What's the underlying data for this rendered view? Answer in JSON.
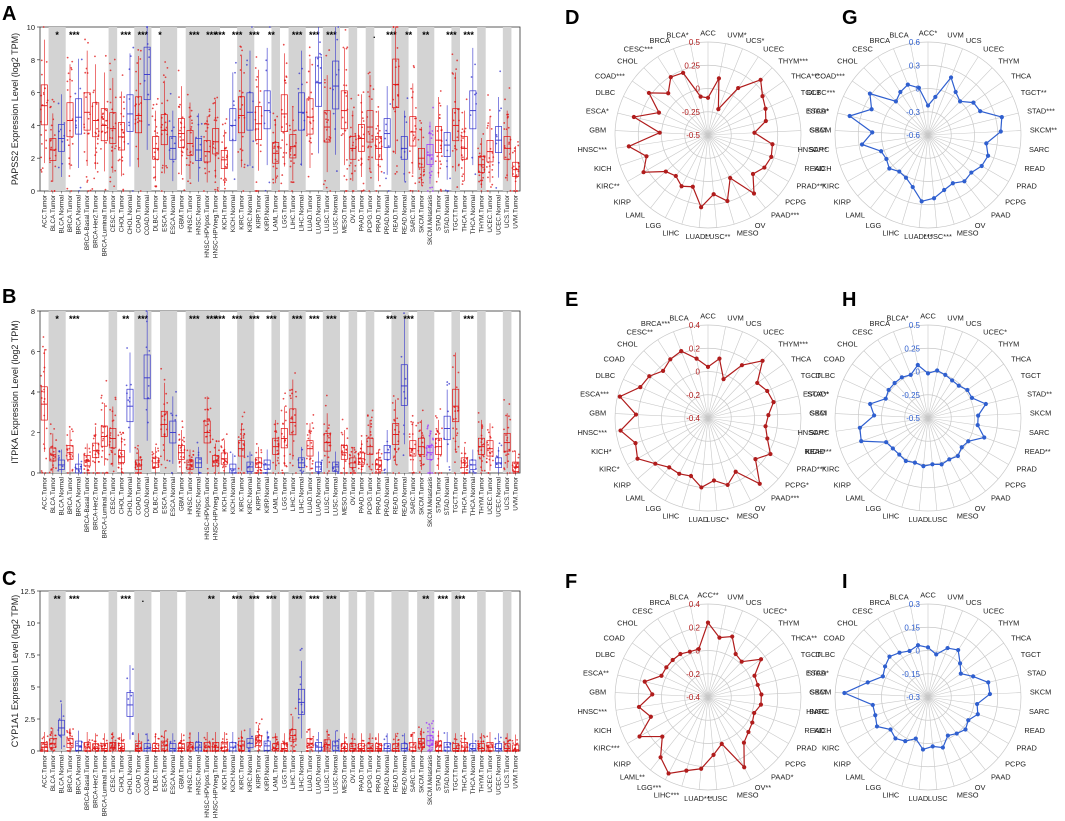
{
  "chart_data": [
    {
      "panel": "A",
      "type": "box",
      "ylabel": "PAPSS2 Expression Level (log2 TPM)",
      "ylim": [
        0,
        10
      ],
      "yticks": [
        0,
        2,
        4,
        6,
        8,
        10
      ],
      "categories": [
        "ACC.Tumor",
        "BLCA.Tumor",
        "BLCA.Normal",
        "BRCA.Tumor",
        "BRCA.Normal",
        "BRCA-Basal.Tumor",
        "BRCA-Her2.Tumor",
        "BRCA-Luminal.Tumor",
        "CESC.Tumor",
        "CHOL.Tumor",
        "CHOL.Normal",
        "COAD.Tumor",
        "COAD.Normal",
        "DLBC.Tumor",
        "ESCA.Tumor",
        "ESCA.Normal",
        "GBM.Tumor",
        "HNSC.Tumor",
        "HNSC.Normal",
        "HNSC-HPVpos.Tumor",
        "HNSC-HPVneg.Tumor",
        "KICH.Tumor",
        "KICH.Normal",
        "KIRC.Tumor",
        "KIRC.Normal",
        "KIRP.Tumor",
        "KIRP.Normal",
        "LAML.Tumor",
        "LGG.Tumor",
        "LIHC.Tumor",
        "LIHC.Normal",
        "LUAD.Tumor",
        "LUAD.Normal",
        "LUSC.Tumor",
        "LUSC.Normal",
        "MESO.Tumor",
        "OV.Tumor",
        "PAAD.Tumor",
        "PCPG.Tumor",
        "PRAD.Tumor",
        "PRAD.Normal",
        "READ.Tumor",
        "READ.Normal",
        "SARC.Tumor",
        "SKCM.Tumor",
        "SKCM.Metastasis",
        "STAD.Tumor",
        "STAD.Normal",
        "TGCT.Tumor",
        "THCA.Tumor",
        "THCA.Normal",
        "THYM.Tumor",
        "UCEC.Tumor",
        "UCEC.Normal",
        "UCS.Tumor",
        "UVM.Tumor"
      ],
      "medians": [
        5.2,
        2.5,
        3.2,
        4.3,
        4.5,
        4.8,
        4.3,
        4.0,
        3.8,
        3.3,
        4.7,
        4.6,
        7.1,
        2.6,
        3.7,
        2.6,
        3.5,
        2.9,
        2.5,
        2.4,
        3.0,
        1.9,
        4.0,
        4.6,
        4.8,
        4.1,
        4.9,
        2.3,
        4.7,
        2.7,
        4.8,
        4.5,
        6.6,
        3.9,
        6.4,
        4.9,
        2.6,
        3.2,
        3.9,
        2.6,
        3.5,
        6.5,
        2.6,
        3.6,
        2.0,
        2.2,
        3.1,
        2.8,
        4.0,
        2.6,
        4.9,
        1.6,
        2.4,
        3.1,
        2.6,
        1.3
      ],
      "significance": [
        "",
        "*",
        "",
        "***",
        "",
        "",
        "",
        "",
        "",
        "***",
        "",
        "***",
        "",
        "*",
        "",
        "",
        "",
        "***",
        "",
        "***",
        "***",
        "",
        "***",
        "",
        "***",
        "",
        "**",
        "",
        "",
        "***",
        "",
        "***",
        "",
        "***",
        "",
        "",
        "",
        "",
        ".",
        "",
        "***",
        "",
        "**",
        "",
        "**",
        "",
        "",
        "***",
        "",
        "***",
        "",
        "",
        "",
        "",
        "",
        ""
      ]
    },
    {
      "panel": "B",
      "type": "box",
      "ylabel": "ITPKA Expression Level (log2 TPM)",
      "ylim": [
        0,
        8
      ],
      "yticks": [
        0,
        2,
        4,
        6,
        8
      ],
      "categories": [
        "ACC.Tumor",
        "BLCA.Tumor",
        "BLCA.Normal",
        "BRCA.Tumor",
        "BRCA.Normal",
        "BRCA-Basal.Tumor",
        "BRCA-Her2.Tumor",
        "BRCA-Luminal.Tumor",
        "CESC.Tumor",
        "CHOL.Tumor",
        "CHOL.Normal",
        "COAD.Tumor",
        "COAD.Normal",
        "DLBC.Tumor",
        "ESCA.Tumor",
        "ESCA.Normal",
        "GBM.Tumor",
        "HNSC.Tumor",
        "HNSC.Normal",
        "HNSC-HPVpos.Tumor",
        "HNSC-HPVneg.Tumor",
        "KICH.Tumor",
        "KICH.Normal",
        "KIRC.Tumor",
        "KIRC.Normal",
        "KIRP.Tumor",
        "KIRP.Normal",
        "LAML.Tumor",
        "LGG.Tumor",
        "LIHC.Tumor",
        "LIHC.Normal",
        "LUAD.Tumor",
        "LUAD.Normal",
        "LUSC.Tumor",
        "LUSC.Normal",
        "MESO.Tumor",
        "OV.Tumor",
        "PAAD.Tumor",
        "PCPG.Tumor",
        "PRAD.Tumor",
        "PRAD.Normal",
        "READ.Tumor",
        "READ.Normal",
        "SARC.Tumor",
        "SKCM.Tumor",
        "SKCM.Metastasis",
        "STAD.Tumor",
        "STAD.Normal",
        "TGCT.Tumor",
        "THCA.Tumor",
        "THCA.Normal",
        "THYM.Tumor",
        "UCEC.Tumor",
        "UCEC.Normal",
        "UCS.Tumor",
        "UVM.Tumor"
      ],
      "medians": [
        3.4,
        0.9,
        0.4,
        1.0,
        0.2,
        0.6,
        1.1,
        1.8,
        1.7,
        0.8,
        3.3,
        0.4,
        4.7,
        0.5,
        2.4,
        2.0,
        1.0,
        0.4,
        0.5,
        2.0,
        0.6,
        0.7,
        0.2,
        1.2,
        0.3,
        0.5,
        0.4,
        1.3,
        1.7,
        2.5,
        0.5,
        1.2,
        0.3,
        1.5,
        0.3,
        1.0,
        0.5,
        0.7,
        1.3,
        0.4,
        1.0,
        1.9,
        4.3,
        1.2,
        1.3,
        1.0,
        1.3,
        2.2,
        3.3,
        0.5,
        0.4,
        1.3,
        1.2,
        0.5,
        1.5,
        0.3
      ],
      "significance": [
        "",
        "*",
        "",
        "***",
        "",
        "",
        "",
        "",
        "",
        "**",
        "",
        "***",
        "",
        "",
        "",
        "",
        "",
        "***",
        "",
        "***",
        "***",
        "",
        "***",
        "",
        "***",
        "",
        "***",
        "",
        "",
        "***",
        "",
        "***",
        "",
        "***",
        "",
        "",
        "",
        "",
        "",
        "",
        "***",
        "",
        "***",
        "",
        "",
        "",
        "",
        "",
        "",
        "***",
        "",
        "",
        "",
        "",
        "",
        ""
      ]
    },
    {
      "panel": "C",
      "type": "box",
      "ylabel": "CYP1A1 Expression Level (log2 TPM)",
      "ylim": [
        0,
        12.5
      ],
      "yticks": [
        0,
        2.5,
        5,
        7.5,
        10,
        12.5
      ],
      "categories": [
        "ACC.Tumor",
        "BLCA.Tumor",
        "BLCA.Normal",
        "BRCA.Tumor",
        "BRCA.Normal",
        "BRCA-Basal.Tumor",
        "BRCA-Her2.Tumor",
        "BRCA-Luminal.Tumor",
        "CESC.Tumor",
        "CHOL.Tumor",
        "CHOL.Normal",
        "COAD.Tumor",
        "COAD.Normal",
        "DLBC.Tumor",
        "ESCA.Tumor",
        "ESCA.Normal",
        "GBM.Tumor",
        "HNSC.Tumor",
        "HNSC.Normal",
        "HNSC-HPVpos.Tumor",
        "HNSC-HPVneg.Tumor",
        "KICH.Tumor",
        "KICH.Normal",
        "KIRC.Tumor",
        "KIRC.Normal",
        "KIRP.Tumor",
        "KIRP.Normal",
        "LAML.Tumor",
        "LGG.Tumor",
        "LIHC.Tumor",
        "LIHC.Normal",
        "LUAD.Tumor",
        "LUAD.Normal",
        "LUSC.Tumor",
        "LUSC.Normal",
        "MESO.Tumor",
        "OV.Tumor",
        "PAAD.Tumor",
        "PCPG.Tumor",
        "PRAD.Tumor",
        "PRAD.Normal",
        "READ.Tumor",
        "READ.Normal",
        "SARC.Tumor",
        "SKCM.Tumor",
        "SKCM.Metastasis",
        "STAD.Tumor",
        "STAD.Normal",
        "TGCT.Tumor",
        "THCA.Tumor",
        "THCA.Normal",
        "THYM.Tumor",
        "UCEC.Tumor",
        "UCEC.Normal",
        "UCS.Tumor",
        "UVM.Tumor"
      ],
      "medians": [
        0.3,
        0.6,
        1.8,
        0.6,
        0.4,
        0.3,
        0.2,
        0.2,
        0.3,
        0.2,
        3.6,
        0.2,
        0.2,
        0.2,
        0.4,
        0.2,
        0.2,
        0.3,
        0.3,
        0.3,
        0.3,
        0.3,
        0.3,
        0.4,
        0.6,
        0.8,
        0.4,
        0.2,
        0.2,
        1.2,
        3.8,
        0.6,
        0.3,
        0.5,
        0.4,
        0.2,
        0.2,
        0.2,
        0.2,
        0.2,
        0.2,
        0.2,
        0.2,
        0.3,
        0.6,
        0.8,
        0.4,
        0.3,
        0.2,
        0.3,
        0.2,
        0.2,
        0.3,
        0.2,
        0.2,
        0.1
      ],
      "significance": [
        "",
        "**",
        "",
        "***",
        "",
        "",
        "",
        "",
        "",
        "***",
        "",
        ".",
        "",
        "",
        "",
        "",
        "",
        "",
        "",
        "**",
        "",
        "",
        "***",
        "",
        "***",
        "",
        "***",
        "",
        "",
        "***",
        "",
        "***",
        "",
        "***",
        "",
        "",
        "",
        "",
        "",
        "",
        "",
        "",
        "",
        "",
        "**",
        "",
        "***",
        "",
        "***",
        "",
        "",
        "",
        "",
        "",
        "",
        ""
      ]
    },
    {
      "panel": "D",
      "type": "radar",
      "color": "#b01c1c",
      "rticks": [
        "0.5",
        "0.25",
        "0",
        "-0.25",
        "-0.5"
      ],
      "rmin": -0.5,
      "rmax": 0.5,
      "labels": [
        "ACC",
        "UVM*",
        "UCS*",
        "UCEC",
        "THYM***",
        "THCA***",
        "TGCT",
        "STAD*",
        "SKCM",
        "SARC",
        "READ",
        "PRAD***",
        "PCPG",
        "PAAD***",
        "OV",
        "MESO",
        "LUSC**",
        "LUAD**",
        "LIHC",
        "LGG",
        "LAML",
        "KIRP",
        "KIRC**",
        "KICH",
        "HNSC***",
        "GBM",
        "ESCA*",
        "DLBC",
        "COAD***",
        "CHOL",
        "CESC***",
        "BRCA",
        "BLCA*"
      ],
      "values": [
        -0.1,
        0.12,
        -0.2,
        0.1,
        0.32,
        0.22,
        0.18,
        0.14,
        0.0,
        0.2,
        0.22,
        0.2,
        0.14,
        0.3,
        0.02,
        0.24,
        0.14,
        0.28,
        0.08,
        0.12,
        0.06,
        0.1,
        0.3,
        0.2,
        0.36,
        0.02,
        0.32,
        0.08,
        0.28,
        0.12,
        0.24,
        0.22,
        -0.08
      ]
    },
    {
      "panel": "E",
      "type": "radar",
      "color": "#b01c1c",
      "rticks": [
        "0.4",
        "0.2",
        "0",
        "-0.2",
        "-0.4"
      ],
      "rmin": -0.4,
      "rmax": 0.4,
      "labels": [
        "ACC",
        "UVM",
        "UCS",
        "UCEC",
        "THYM***",
        "THCA",
        "TGCT",
        "STAD*",
        "SKCI",
        "SARC",
        "READ",
        "PRAD***",
        "PCPG*",
        "PAAD***",
        "OV",
        "MESO",
        "LUSC*",
        "LUAD",
        "LIHC",
        "LGG",
        "LAML",
        "KIRP",
        "KIRC*",
        "KICH*",
        "HNSC***",
        "GBM",
        "ESCA***",
        "DLBC",
        "COAD",
        "CHOL",
        "CESC**",
        "BRCA***",
        "BLCA"
      ],
      "values": [
        0.04,
        0.12,
        -0.04,
        0.14,
        0.28,
        0.12,
        0.16,
        0.18,
        0.12,
        0.1,
        0.14,
        0.22,
        0.14,
        0.32,
        0.12,
        0.2,
        0.14,
        0.2,
        0.12,
        0.14,
        0.14,
        0.2,
        0.3,
        0.26,
        0.36,
        0.22,
        0.38,
        0.24,
        0.22,
        0.16,
        0.2,
        0.22,
        0.12
      ]
    },
    {
      "panel": "F",
      "type": "radar",
      "color": "#b01c1c",
      "rticks": [
        "0.4",
        "0.2",
        "0",
        "-0.2",
        "-0.4"
      ],
      "rmin": -0.4,
      "rmax": 0.4,
      "labels": [
        "ACC**",
        "UVM",
        "UCS",
        "UCEC*",
        "THYM",
        "THCA**",
        "TGCT",
        "STAD",
        "SKCM",
        "SARC",
        "READ",
        "PRAD",
        "PCPG",
        "PAAD*",
        "OV**",
        "MESO",
        "LUSC",
        "LUAD***",
        "LIHC***",
        "LGG***",
        "LAML**",
        "KIRP",
        "KIRC***",
        "KICH",
        "HNSC***",
        "GBM",
        "ESCA**",
        "DLBC",
        "COAD",
        "CHOL",
        "CESC",
        "BRCA",
        "BLCA"
      ],
      "values": [
        0.24,
        0.12,
        0.16,
        0.04,
        0.02,
        0.16,
        0.04,
        0.04,
        0.06,
        0.06,
        0.02,
        0.04,
        0.06,
        0.1,
        0.28,
        0.02,
        0.1,
        0.22,
        0.26,
        0.34,
        0.26,
        0.12,
        0.28,
        0.12,
        0.2,
        0.08,
        0.16,
        0.04,
        0.04,
        0.04,
        0.04,
        0.02,
        0.02
      ]
    },
    {
      "panel": "G",
      "type": "radar",
      "color": "#2f5fcf",
      "rticks": [
        "0.6",
        "0.3",
        "0",
        "-0.3",
        "-0.6"
      ],
      "rmin": -0.6,
      "rmax": 0.6,
      "labels": [
        "ACC*",
        "UVM",
        "UCS",
        "UCEC",
        "THYM",
        "THCA",
        "TGCT**",
        "STAD***",
        "SKCM**",
        "SARC",
        "READ",
        "PRAD",
        "PCPG",
        "PAAD",
        "OV",
        "MESO",
        "LUSC***",
        "LUAD***",
        "LIHC",
        "LGG",
        "LAML",
        "KIRP",
        "KIRC",
        "KICH",
        "HNSC***",
        "GBM",
        "ESCA*",
        "DLBC***",
        "COAD***",
        "CHOL",
        "CESC",
        "BRCA",
        "BLCA"
      ],
      "values": [
        -0.22,
        -0.1,
        0.2,
        0.06,
        0.0,
        0.12,
        0.14,
        0.38,
        0.34,
        0.16,
        0.22,
        0.2,
        0.14,
        0.16,
        0.1,
        0.14,
        0.22,
        0.26,
        0.1,
        0.02,
        0.0,
        0.06,
        0.02,
        0.04,
        0.26,
        0.12,
        0.44,
        0.2,
        0.32,
        0.0,
        0.06,
        0.1,
        0.02
      ]
    },
    {
      "panel": "H",
      "type": "radar",
      "color": "#2f5fcf",
      "rticks": [
        "0.5",
        "0.25",
        "0",
        "-0.25",
        "-0.5"
      ],
      "rmin": -0.5,
      "rmax": 0.5,
      "labels": [
        "ACC",
        "UVM",
        "UCS",
        "UCEC*",
        "THYM",
        "THCA",
        "TGCT",
        "STAD**",
        "SKCM",
        "SARC",
        "READ**",
        "PRAD",
        "PCPG",
        "PAAD",
        "OV",
        "MESO",
        "LUSC",
        "LUAD",
        "LIHC",
        "LGG",
        "LAML",
        "KIRP",
        "KIRC",
        "KICH***",
        "HNSC***",
        "GBM",
        "ESCA**",
        "DLBC",
        "COAD",
        "CHOL",
        "CESC",
        "BRCA",
        "BLCA*"
      ],
      "values": [
        -0.02,
        0.02,
        0.0,
        -0.02,
        -0.02,
        0.02,
        0.02,
        0.14,
        0.04,
        0.04,
        0.14,
        0.0,
        -0.02,
        0.02,
        0.0,
        0.02,
        0.0,
        0.02,
        0.0,
        0.02,
        0.0,
        0.0,
        0.02,
        0.26,
        0.24,
        0.08,
        0.14,
        0.0,
        0.02,
        0.02,
        0.02,
        0.0,
        0.08
      ]
    },
    {
      "panel": "I",
      "type": "radar",
      "color": "#2f5fcf",
      "rticks": [
        "0.3",
        "0.15",
        "0",
        "-0.15",
        "-0.3"
      ],
      "rmin": -0.3,
      "rmax": 0.3,
      "labels": [
        "ACC",
        "UVM",
        "UCS",
        "UCEC",
        "THYM",
        "THCA",
        "TGCT",
        "STAD",
        "SKCM",
        "SARC",
        "READ",
        "PRAD",
        "PCPG",
        "PAAD",
        "OV",
        "MESO",
        "LUSC",
        "LUAD",
        "LIHC",
        "LGG",
        "LAML",
        "KIRP",
        "KIRC",
        "KICH",
        "HNSC",
        "GBM",
        "ESCA*",
        "DLBC",
        "COAD",
        "CHOL",
        "CESC",
        "BRCA",
        "BLCA"
      ],
      "values": [
        0.02,
        -0.02,
        0.04,
        0.06,
        0.0,
        -0.04,
        0.02,
        0.1,
        0.1,
        0.02,
        0.04,
        0.0,
        0.02,
        0.0,
        -0.02,
        0.04,
        0.02,
        0.04,
        -0.02,
        0.02,
        0.04,
        0.02,
        0.08,
        0.06,
        0.06,
        0.24,
        0.1,
        0.02,
        0.04,
        0.06,
        0.04,
        0.02,
        0.04
      ]
    }
  ]
}
